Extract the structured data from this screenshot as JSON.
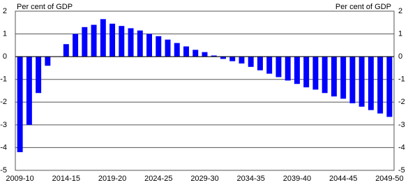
{
  "chart_data": {
    "type": "bar",
    "y_label_left": "Per cent of GDP",
    "y_label_right": "Per cent of GDP",
    "categories": [
      "2009-10",
      null,
      null,
      null,
      null,
      "2014-15",
      null,
      null,
      null,
      null,
      "2019-20",
      null,
      null,
      null,
      null,
      "2024-25",
      null,
      null,
      null,
      null,
      "2029-30",
      null,
      null,
      null,
      null,
      "2034-35",
      null,
      null,
      null,
      null,
      "2039-40",
      null,
      null,
      null,
      null,
      "2044-45",
      null,
      null,
      null,
      null,
      "2049-50"
    ],
    "values": [
      -4.2,
      -3.0,
      -1.6,
      -0.4,
      0.0,
      0.55,
      1.0,
      1.3,
      1.4,
      1.65,
      1.45,
      1.35,
      1.25,
      1.15,
      1.0,
      0.9,
      0.75,
      0.6,
      0.45,
      0.3,
      0.2,
      0.05,
      -0.1,
      -0.2,
      -0.3,
      -0.45,
      -0.6,
      -0.75,
      -0.9,
      -1.05,
      -1.2,
      -1.35,
      -1.45,
      -1.6,
      -1.75,
      -1.85,
      -2.05,
      -2.2,
      -2.35,
      -2.5,
      -2.65
    ],
    "color": "#0000ff",
    "ylim": [
      -5,
      2
    ],
    "yticks": [
      -5,
      -4,
      -3,
      -2,
      -1,
      0,
      1,
      2
    ],
    "grid": true
  }
}
